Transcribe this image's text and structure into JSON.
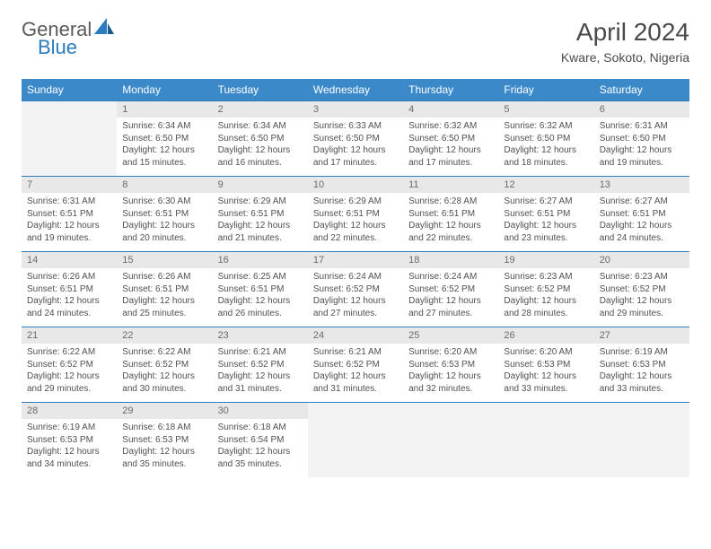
{
  "logo": {
    "text1": "General",
    "text2": "Blue"
  },
  "title": "April 2024",
  "location": "Kware, Sokoto, Nigeria",
  "colors": {
    "header_bg": "#3b89c9",
    "header_text": "#ffffff",
    "daynum_bg": "#e8e8e8",
    "daynum_text": "#6a6a6a",
    "cell_text": "#505050",
    "accent": "#2b7bbf",
    "logo_gray": "#5a5a5a",
    "title_gray": "#4a4a4a",
    "empty_bg": "#f3f3f3",
    "page_bg": "#ffffff"
  },
  "typography": {
    "title_fontsize": 28,
    "subtitle_fontsize": 14,
    "weekday_fontsize": 12,
    "daynum_fontsize": 11,
    "cell_fontsize": 10,
    "font_family": "Arial"
  },
  "weekdays": [
    "Sunday",
    "Monday",
    "Tuesday",
    "Wednesday",
    "Thursday",
    "Friday",
    "Saturday"
  ],
  "weeks": [
    [
      null,
      {
        "n": "1",
        "sr": "6:34 AM",
        "ss": "6:50 PM",
        "dl": "12 hours and 15 minutes."
      },
      {
        "n": "2",
        "sr": "6:34 AM",
        "ss": "6:50 PM",
        "dl": "12 hours and 16 minutes."
      },
      {
        "n": "3",
        "sr": "6:33 AM",
        "ss": "6:50 PM",
        "dl": "12 hours and 17 minutes."
      },
      {
        "n": "4",
        "sr": "6:32 AM",
        "ss": "6:50 PM",
        "dl": "12 hours and 17 minutes."
      },
      {
        "n": "5",
        "sr": "6:32 AM",
        "ss": "6:50 PM",
        "dl": "12 hours and 18 minutes."
      },
      {
        "n": "6",
        "sr": "6:31 AM",
        "ss": "6:50 PM",
        "dl": "12 hours and 19 minutes."
      }
    ],
    [
      {
        "n": "7",
        "sr": "6:31 AM",
        "ss": "6:51 PM",
        "dl": "12 hours and 19 minutes."
      },
      {
        "n": "8",
        "sr": "6:30 AM",
        "ss": "6:51 PM",
        "dl": "12 hours and 20 minutes."
      },
      {
        "n": "9",
        "sr": "6:29 AM",
        "ss": "6:51 PM",
        "dl": "12 hours and 21 minutes."
      },
      {
        "n": "10",
        "sr": "6:29 AM",
        "ss": "6:51 PM",
        "dl": "12 hours and 22 minutes."
      },
      {
        "n": "11",
        "sr": "6:28 AM",
        "ss": "6:51 PM",
        "dl": "12 hours and 22 minutes."
      },
      {
        "n": "12",
        "sr": "6:27 AM",
        "ss": "6:51 PM",
        "dl": "12 hours and 23 minutes."
      },
      {
        "n": "13",
        "sr": "6:27 AM",
        "ss": "6:51 PM",
        "dl": "12 hours and 24 minutes."
      }
    ],
    [
      {
        "n": "14",
        "sr": "6:26 AM",
        "ss": "6:51 PM",
        "dl": "12 hours and 24 minutes."
      },
      {
        "n": "15",
        "sr": "6:26 AM",
        "ss": "6:51 PM",
        "dl": "12 hours and 25 minutes."
      },
      {
        "n": "16",
        "sr": "6:25 AM",
        "ss": "6:51 PM",
        "dl": "12 hours and 26 minutes."
      },
      {
        "n": "17",
        "sr": "6:24 AM",
        "ss": "6:52 PM",
        "dl": "12 hours and 27 minutes."
      },
      {
        "n": "18",
        "sr": "6:24 AM",
        "ss": "6:52 PM",
        "dl": "12 hours and 27 minutes."
      },
      {
        "n": "19",
        "sr": "6:23 AM",
        "ss": "6:52 PM",
        "dl": "12 hours and 28 minutes."
      },
      {
        "n": "20",
        "sr": "6:23 AM",
        "ss": "6:52 PM",
        "dl": "12 hours and 29 minutes."
      }
    ],
    [
      {
        "n": "21",
        "sr": "6:22 AM",
        "ss": "6:52 PM",
        "dl": "12 hours and 29 minutes."
      },
      {
        "n": "22",
        "sr": "6:22 AM",
        "ss": "6:52 PM",
        "dl": "12 hours and 30 minutes."
      },
      {
        "n": "23",
        "sr": "6:21 AM",
        "ss": "6:52 PM",
        "dl": "12 hours and 31 minutes."
      },
      {
        "n": "24",
        "sr": "6:21 AM",
        "ss": "6:52 PM",
        "dl": "12 hours and 31 minutes."
      },
      {
        "n": "25",
        "sr": "6:20 AM",
        "ss": "6:53 PM",
        "dl": "12 hours and 32 minutes."
      },
      {
        "n": "26",
        "sr": "6:20 AM",
        "ss": "6:53 PM",
        "dl": "12 hours and 33 minutes."
      },
      {
        "n": "27",
        "sr": "6:19 AM",
        "ss": "6:53 PM",
        "dl": "12 hours and 33 minutes."
      }
    ],
    [
      {
        "n": "28",
        "sr": "6:19 AM",
        "ss": "6:53 PM",
        "dl": "12 hours and 34 minutes."
      },
      {
        "n": "29",
        "sr": "6:18 AM",
        "ss": "6:53 PM",
        "dl": "12 hours and 35 minutes."
      },
      {
        "n": "30",
        "sr": "6:18 AM",
        "ss": "6:54 PM",
        "dl": "12 hours and 35 minutes."
      },
      null,
      null,
      null,
      null
    ]
  ],
  "labels": {
    "sunrise": "Sunrise:",
    "sunset": "Sunset:",
    "daylight": "Daylight:"
  }
}
